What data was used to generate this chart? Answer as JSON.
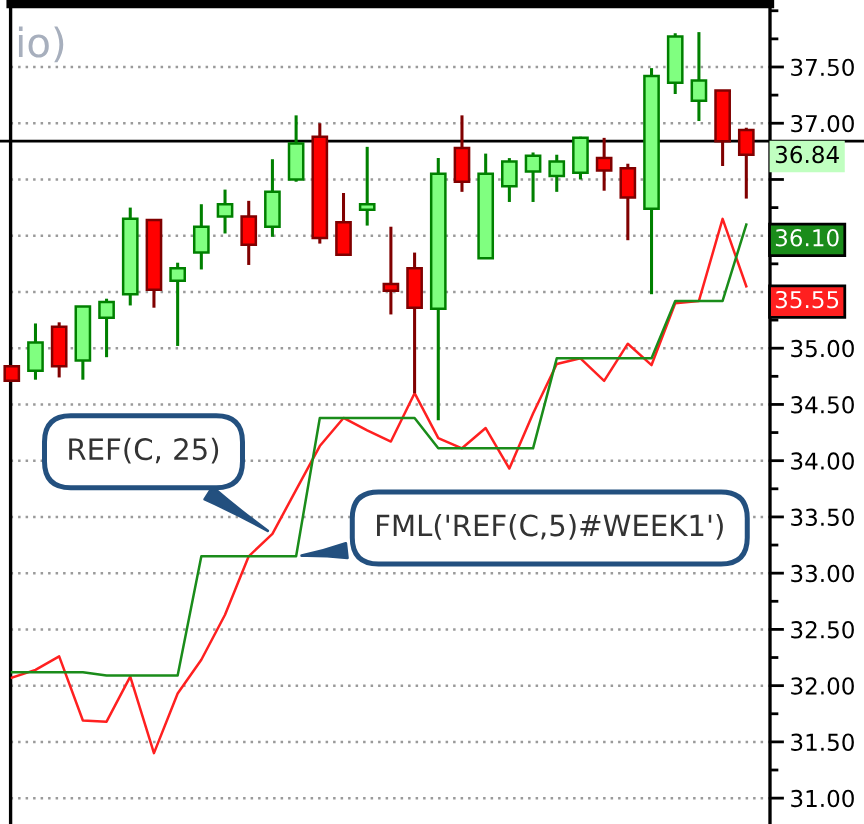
{
  "chart_data": {
    "type": "candlestick",
    "title": "io)",
    "categories": [
      null,
      null,
      null,
      null,
      null,
      null,
      null,
      null,
      null,
      null,
      null,
      null,
      null,
      null,
      null,
      null,
      null,
      null,
      null,
      null,
      null,
      null,
      null,
      null,
      null,
      null,
      null,
      null,
      null,
      null,
      null,
      null
    ],
    "ohlc": [
      [
        34.84,
        34.85,
        34.7,
        34.71
      ],
      [
        34.8,
        35.22,
        34.72,
        35.05
      ],
      [
        35.19,
        35.23,
        34.74,
        34.84
      ],
      [
        34.89,
        35.37,
        34.72,
        35.37
      ],
      [
        35.27,
        35.44,
        34.92,
        35.41
      ],
      [
        35.48,
        36.25,
        35.38,
        36.15
      ],
      [
        36.14,
        36.14,
        35.36,
        35.52
      ],
      [
        35.6,
        35.76,
        35.02,
        35.71
      ],
      [
        35.85,
        36.28,
        35.7,
        36.08
      ],
      [
        36.17,
        36.41,
        36.02,
        36.28
      ],
      [
        36.17,
        36.31,
        35.74,
        35.92
      ],
      [
        36.08,
        36.68,
        35.99,
        36.39
      ],
      [
        36.5,
        37.07,
        36.48,
        36.82
      ],
      [
        36.88,
        37.0,
        35.93,
        35.98
      ],
      [
        36.12,
        36.38,
        35.83,
        35.83
      ],
      [
        36.23,
        36.79,
        36.09,
        36.28
      ],
      [
        35.57,
        36.08,
        35.3,
        35.51
      ],
      [
        35.71,
        35.85,
        34.6,
        35.36
      ],
      [
        35.35,
        36.69,
        34.36,
        36.55
      ],
      [
        36.78,
        37.07,
        36.39,
        36.48
      ],
      [
        35.8,
        36.73,
        35.8,
        36.55
      ],
      [
        36.44,
        36.69,
        36.3,
        36.66
      ],
      [
        36.57,
        36.74,
        36.3,
        36.71
      ],
      [
        36.53,
        36.72,
        36.39,
        36.66
      ],
      [
        36.56,
        36.88,
        36.5,
        36.87
      ],
      [
        36.69,
        36.87,
        36.4,
        36.58
      ],
      [
        36.6,
        36.64,
        35.96,
        36.34
      ],
      [
        36.24,
        37.49,
        35.48,
        37.42
      ],
      [
        37.36,
        37.8,
        37.26,
        37.77
      ],
      [
        37.2,
        37.81,
        37.02,
        37.38
      ],
      [
        37.29,
        37.29,
        36.62,
        36.84
      ],
      [
        36.94,
        36.96,
        36.33,
        36.72
      ]
    ],
    "colors": [
      "#ff0000",
      "#80ff80",
      "#ff0000",
      "#80ff80",
      "#80ff80",
      "#80ff80",
      "#ff0000",
      "#80ff80",
      "#80ff80",
      "#80ff80",
      "#ff0000",
      "#80ff80",
      "#80ff80",
      "#ff0000",
      "#ff0000",
      "#80ff80",
      "#ff0000",
      "#ff0000",
      "#80ff80",
      "#ff0000",
      "#80ff80",
      "#80ff80",
      "#80ff80",
      "#80ff80",
      "#80ff80",
      "#ff0000",
      "#ff0000",
      "#80ff80",
      "#80ff80",
      "#80ff80",
      "#ff0000",
      "#ff0000"
    ],
    "series": [
      {
        "type": "line",
        "name": "REF(C, 25)",
        "color": "#ff2020",
        "values": [
          32.07,
          32.14,
          32.26,
          31.69,
          31.68,
          32.08,
          31.4,
          31.93,
          32.23,
          32.63,
          33.15,
          33.35,
          33.74,
          34.13,
          34.38,
          34.27,
          34.17,
          34.6,
          34.2,
          34.11,
          34.29,
          33.93,
          34.42,
          34.86,
          34.91,
          34.71,
          35.04,
          34.85,
          35.4,
          35.42,
          36.15,
          35.55
        ],
        "value_labels": [
          null,
          null,
          null,
          null,
          null,
          null,
          null,
          null,
          null,
          null,
          null,
          null,
          null,
          null,
          null,
          null,
          null,
          null,
          null,
          null,
          null,
          null,
          null,
          null,
          null,
          null,
          null,
          null,
          null,
          null,
          null,
          "35.55"
        ]
      },
      {
        "type": "line",
        "name": "FML('REF(C,5)#WEEK1')",
        "color": "#1a8c1a",
        "values": [
          32.12,
          32.12,
          32.12,
          32.12,
          32.09,
          32.09,
          32.09,
          32.09,
          33.15,
          33.15,
          33.15,
          33.15,
          33.15,
          34.38,
          34.38,
          34.38,
          34.38,
          34.38,
          34.11,
          34.11,
          34.11,
          34.11,
          34.11,
          34.91,
          34.91,
          34.91,
          34.91,
          34.91,
          35.42,
          35.42,
          35.42,
          36.1
        ],
        "value_labels": [
          null,
          null,
          null,
          null,
          null,
          null,
          null,
          null,
          null,
          null,
          null,
          null,
          null,
          null,
          null,
          null,
          null,
          null,
          null,
          null,
          null,
          null,
          null,
          null,
          null,
          null,
          null,
          null,
          null,
          null,
          null,
          "36.10"
        ]
      }
    ],
    "ylim": [
      30.77,
      38.06
    ],
    "yticks": [
      {
        "value": 31,
        "label": "31.00"
      },
      {
        "value": 31.5,
        "label": "31.50"
      },
      {
        "value": 32,
        "label": "32.00"
      },
      {
        "value": 32.5,
        "label": "32.50"
      },
      {
        "value": 33,
        "label": "33.00"
      },
      {
        "value": 33.5,
        "label": "33.50"
      },
      {
        "value": 34,
        "label": "34.00"
      },
      {
        "value": 34.5,
        "label": "34.50"
      },
      {
        "value": 35,
        "label": "35.00"
      },
      {
        "value": 35.5,
        "label": null
      },
      {
        "value": 36,
        "label": null
      },
      {
        "value": 36.5,
        "label": null
      },
      {
        "value": 37,
        "label": "37.00"
      },
      {
        "value": 37.5,
        "label": "37.50"
      }
    ],
    "ref_lines": [
      {
        "axis": "y",
        "value": 36.84,
        "label": "36.84",
        "color": "#000000"
      }
    ],
    "grid": "y",
    "tick_labels": "y"
  }
}
